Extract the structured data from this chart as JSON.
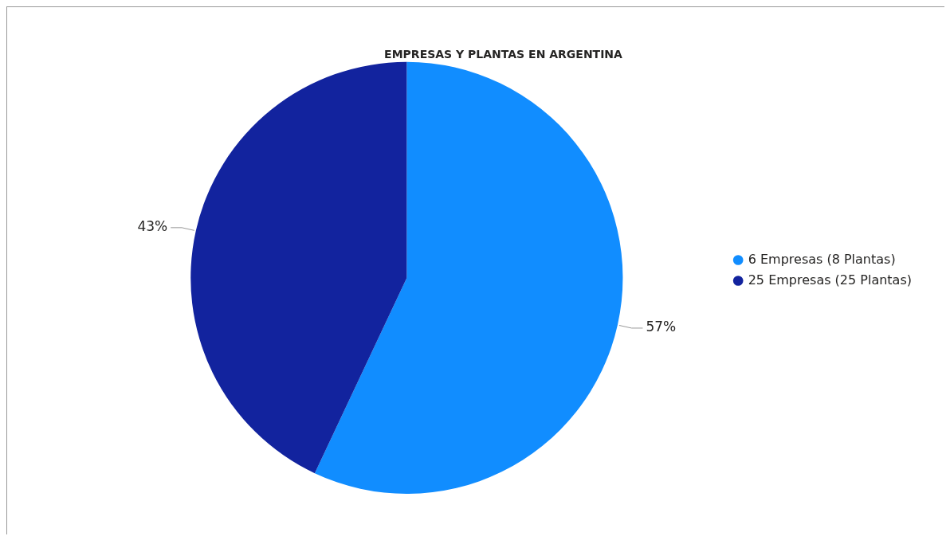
{
  "chart_data": {
    "type": "pie",
    "title": "EMPRESAS Y PLANTAS EN ARGENTINA",
    "categories": [
      "6 Empresas (8 Plantas)",
      "25 Empresas (25 Plantas)"
    ],
    "values": [
      57,
      43
    ],
    "colors": [
      "#118dff",
      "#12239e"
    ],
    "value_labels": [
      "57%",
      "43%"
    ],
    "legend": "right"
  }
}
